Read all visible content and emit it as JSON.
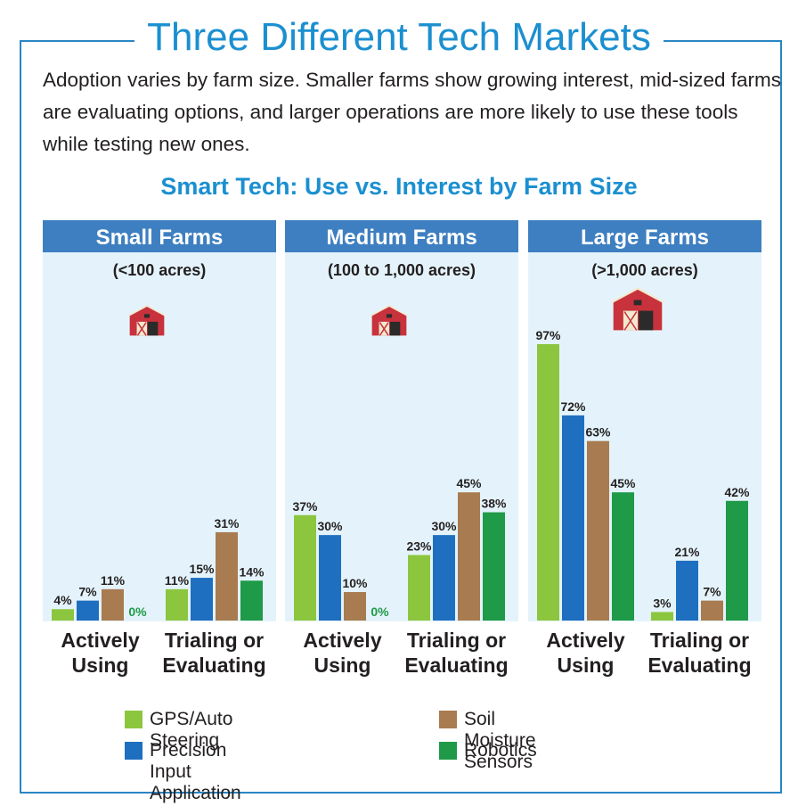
{
  "header": {
    "title": "Three Different Tech Markets",
    "intro": "Adoption varies by farm size. Smaller farms show growing interest, mid-sized farms are evaluating options, and larger operations are more likely to use these tools while testing new ones."
  },
  "colors": {
    "border": "#2a86c4",
    "panel_header": "#3e7fc1",
    "panel_bg": "#e4f3fb",
    "gps": "#8cc63f",
    "precision": "#1f6fc0",
    "soil": "#a97b50",
    "robotics": "#1f9a48"
  },
  "chart_data": {
    "type": "bar",
    "title": "Smart Tech: Use vs. Interest by Farm Size",
    "ylim": [
      0,
      100
    ],
    "series_names": [
      "GPS/Auto Steering",
      "Precision Input Application",
      "Soil Moisture Sensors",
      "Robotics"
    ],
    "groups": [
      "Actively Using",
      "Trialing or Evaluating"
    ],
    "panels": [
      {
        "name": "Small Farms",
        "range": "(<100 acres)",
        "groups": [
          {
            "label_lines": [
              "Actively",
              "Using"
            ],
            "values": [
              4,
              7,
              11,
              0
            ]
          },
          {
            "label_lines": [
              "Trialing or",
              "Evaluating"
            ],
            "values": [
              11,
              15,
              31,
              14
            ]
          }
        ]
      },
      {
        "name": "Medium Farms",
        "range": "(100 to 1,000 acres)",
        "groups": [
          {
            "label_lines": [
              "Actively",
              "Using"
            ],
            "values": [
              37,
              30,
              10,
              0
            ]
          },
          {
            "label_lines": [
              "Trialing or",
              "Evaluating"
            ],
            "values": [
              23,
              30,
              45,
              38
            ]
          }
        ]
      },
      {
        "name": "Large Farms",
        "range": "(>1,000 acres)",
        "groups": [
          {
            "label_lines": [
              "Actively",
              "Using"
            ],
            "values": [
              97,
              72,
              63,
              45
            ]
          },
          {
            "label_lines": [
              "Trialing or",
              "Evaluating"
            ],
            "values": [
              3,
              21,
              7,
              42
            ]
          }
        ]
      }
    ]
  }
}
